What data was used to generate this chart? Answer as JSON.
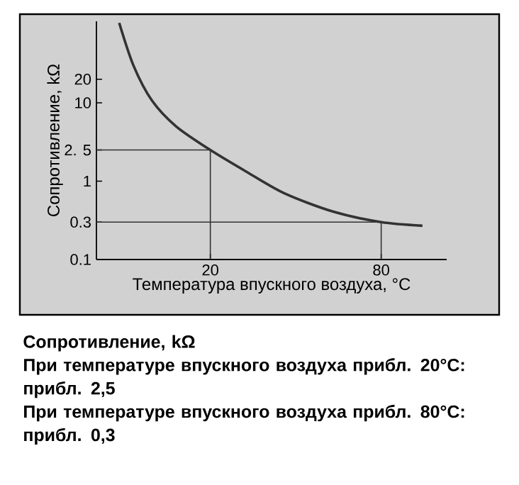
{
  "chart_data": {
    "type": "line",
    "xlabel": "Температура впускного воздуха, °C",
    "ylabel": "Сопротивление, kΩ",
    "x": [
      -12,
      -7,
      -0.5,
      8,
      20,
      33,
      46,
      63,
      80,
      94.5
    ],
    "series": [
      {
        "color": "#333333",
        "values": [
          105,
          30,
          10.7,
          5,
          2.5,
          1.3,
          0.7,
          0.41,
          0.3,
          0.27
        ]
      }
    ],
    "xlim": [
      -20,
      103
    ],
    "xticks": [
      20,
      80
    ],
    "ylim": [
      0.1,
      110
    ],
    "yticks": [
      0.1,
      0.3,
      1,
      {
        "value": 2.5,
        "label": "2. 5"
      },
      10,
      20
    ],
    "log": true,
    "ref_lines": [
      {
        "axis": "x",
        "value": 20
      },
      {
        "axis": "y",
        "value": 2.5
      },
      {
        "axis": "x",
        "value": 80
      },
      {
        "axis": "y",
        "value": 0.3
      }
    ],
    "annotations": [
      "**Сопротивление, kΩ**",
      "**При температуре впускного воздуха прибл. 20°C: прибл. 2,5**",
      "**При температуре впускного воздуха прибл. 80°C: прибл. 0,3**"
    ]
  }
}
